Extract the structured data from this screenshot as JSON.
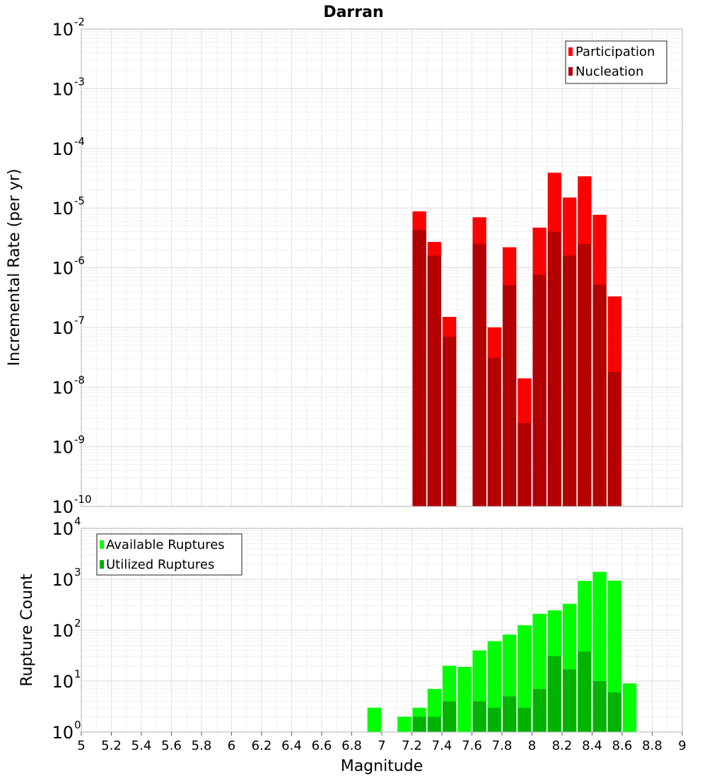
{
  "chart_data": [
    {
      "type": "bar",
      "title": "Darran",
      "ylabel": "Incremental Rate (per yr)",
      "y_scale": "log",
      "ylim_exponents": [
        -10,
        -2
      ],
      "xlim": [
        5,
        9
      ],
      "grid": true,
      "legend_position": "top-right",
      "bar_width": 0.1,
      "series": [
        {
          "name": "Participation",
          "color": "#ff0000",
          "x": [
            7.25,
            7.35,
            7.45,
            7.65,
            7.75,
            7.85,
            7.95,
            8.05,
            8.15,
            8.25,
            8.35,
            8.45,
            8.55
          ],
          "values": [
            8.8e-06,
            2.7e-06,
            1.5e-07,
            7e-06,
            1e-07,
            2.2e-06,
            1.4e-08,
            4.7e-06,
            3.9e-05,
            1.5e-05,
            3.4e-05,
            7.7e-06,
            3.3e-07
          ]
        },
        {
          "name": "Nucleation",
          "color": "#b30000",
          "x": [
            7.25,
            7.35,
            7.45,
            7.65,
            7.75,
            7.85,
            7.95,
            8.05,
            8.15,
            8.25,
            8.35,
            8.45,
            8.55
          ],
          "values": [
            4.3e-06,
            1.6e-06,
            7e-08,
            2.5e-06,
            3.1e-08,
            5.1e-07,
            2.5e-09,
            7.6e-07,
            4e-06,
            1.6e-06,
            2.5e-06,
            5.2e-07,
            1.8e-08
          ]
        }
      ]
    },
    {
      "type": "bar",
      "xlabel": "Magnitude",
      "ylabel": "Rupture Count",
      "y_scale": "log",
      "ylim_exponents": [
        0,
        4
      ],
      "xlim": [
        5,
        9
      ],
      "x_ticks": [
        "5",
        "5.2",
        "5.4",
        "5.6",
        "5.8",
        "6",
        "6.2",
        "6.4",
        "6.6",
        "6.8",
        "7",
        "7.2",
        "7.4",
        "7.6",
        "7.8",
        "8",
        "8.2",
        "8.4",
        "8.6",
        "8.8",
        "9"
      ],
      "grid": true,
      "legend_position": "top-left",
      "bar_width": 0.1,
      "series": [
        {
          "name": "Available Ruptures",
          "color": "#00ff00",
          "x": [
            6.95,
            7.15,
            7.25,
            7.35,
            7.45,
            7.55,
            7.65,
            7.75,
            7.85,
            7.95,
            8.05,
            8.15,
            8.25,
            8.35,
            8.45,
            8.55,
            8.65
          ],
          "values": [
            3,
            2,
            3,
            7,
            20,
            19,
            40,
            61,
            82,
            125,
            210,
            245,
            330,
            930,
            1400,
            940,
            9
          ]
        },
        {
          "name": "Utilized Ruptures",
          "color": "#00b300",
          "x": [
            7.25,
            7.35,
            7.45,
            7.65,
            7.75,
            7.85,
            7.95,
            8.05,
            8.15,
            8.25,
            8.35,
            8.45,
            8.55
          ],
          "values": [
            2,
            2,
            4,
            4,
            3,
            5,
            3,
            7,
            31,
            17,
            38,
            10,
            6
          ]
        }
      ]
    }
  ]
}
